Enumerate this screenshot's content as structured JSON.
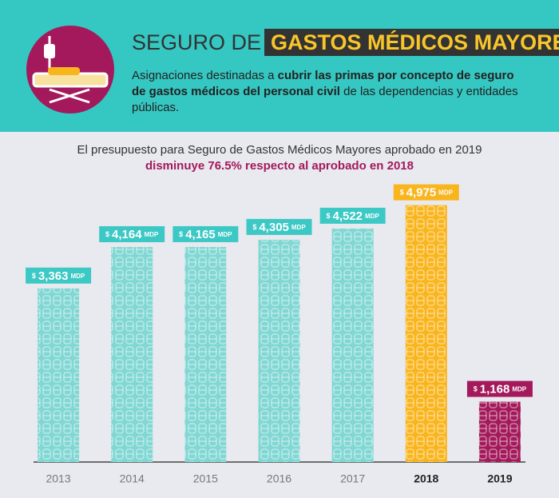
{
  "header": {
    "title": "SEGURO DE",
    "title_highlight": "GASTOS MÉDICOS MAYORES",
    "description": [
      "Asignaciones destinadas a ",
      "cubrir las primas por concepto de seguro de gastos médicos del personal civil",
      " de las dependencias y entidades públicas."
    ]
  },
  "chart_data": {
    "type": "bar",
    "title": "El presupuesto para Seguro de Gastos Médicos Mayores aprobado en 2019",
    "subtitle": "disminuye 76.5% respecto al aprobado en 2018",
    "categories": [
      "2013",
      "2014",
      "2015",
      "2016",
      "2017",
      "2018",
      "2019"
    ],
    "values": [
      3363,
      4164,
      4165,
      4305,
      4522,
      4975,
      1168
    ],
    "value_labels": [
      "3,363",
      "4,164",
      "4,165",
      "4,305",
      "4,522",
      "4,975",
      "1,168"
    ],
    "currency": "$",
    "unit": "MDP",
    "colors": [
      "#80d7d3",
      "#80d7d3",
      "#80d7d3",
      "#80d7d3",
      "#80d7d3",
      "#f9b51e",
      "#a3195b"
    ],
    "label_colors": [
      "#3cc8c4",
      "#3cc8c4",
      "#3cc8c4",
      "#3cc8c4",
      "#3cc8c4",
      "#f9b51e",
      "#a3195b"
    ],
    "highlight": [
      false,
      false,
      false,
      false,
      false,
      true,
      true
    ],
    "ylim": [
      0,
      5000
    ]
  }
}
